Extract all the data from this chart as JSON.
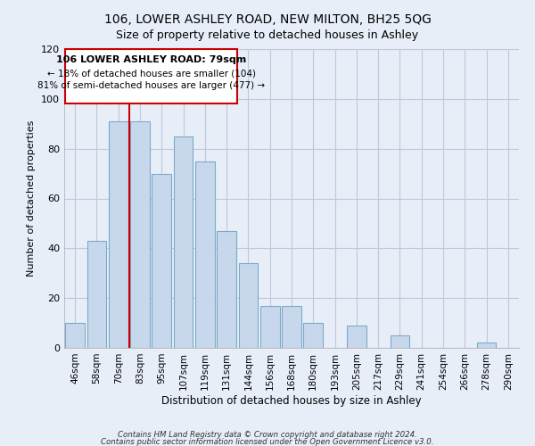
{
  "title": "106, LOWER ASHLEY ROAD, NEW MILTON, BH25 5QG",
  "subtitle": "Size of property relative to detached houses in Ashley",
  "xlabel": "Distribution of detached houses by size in Ashley",
  "ylabel": "Number of detached properties",
  "bar_labels": [
    "46sqm",
    "58sqm",
    "70sqm",
    "83sqm",
    "95sqm",
    "107sqm",
    "119sqm",
    "131sqm",
    "144sqm",
    "156sqm",
    "168sqm",
    "180sqm",
    "193sqm",
    "205sqm",
    "217sqm",
    "229sqm",
    "241sqm",
    "254sqm",
    "266sqm",
    "278sqm",
    "290sqm"
  ],
  "bar_values": [
    10,
    43,
    91,
    91,
    70,
    85,
    75,
    47,
    34,
    17,
    17,
    10,
    0,
    9,
    0,
    5,
    0,
    0,
    0,
    2,
    0
  ],
  "bar_color": "#c8d8ec",
  "bar_edge_color": "#7aaac8",
  "property_line_label": "106 LOWER ASHLEY ROAD: 79sqm",
  "annotation_line1": "← 18% of detached houses are smaller (104)",
  "annotation_line2": "81% of semi-detached houses are larger (477) →",
  "ylim": [
    0,
    120
  ],
  "vline_color": "#cc0000",
  "footnote1": "Contains HM Land Registry data © Crown copyright and database right 2024.",
  "footnote2": "Contains public sector information licensed under the Open Government Licence v3.0.",
  "background_color": "#e8eef8",
  "plot_background": "#e8eef8",
  "grid_color": "#c0c8d8",
  "title_fontsize": 10,
  "subtitle_fontsize": 9
}
